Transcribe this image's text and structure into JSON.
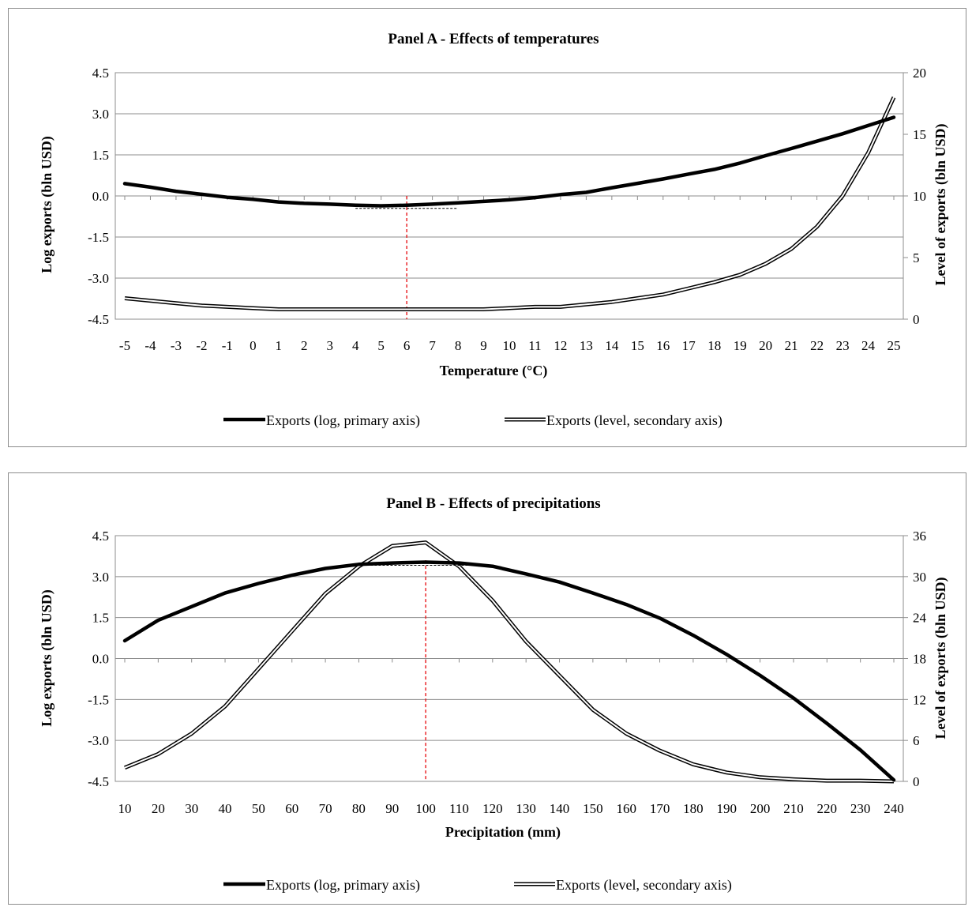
{
  "chart_data": [
    {
      "type": "line",
      "title": "Panel A - Effects of temperatures",
      "xlabel": "Temperature (°C)",
      "ylabel": "Log exports (bln USD)",
      "y2label": "Level of exports (bln USD)",
      "x": [
        -5,
        -4,
        -3,
        -2,
        -1,
        0,
        1,
        2,
        3,
        4,
        5,
        6,
        7,
        8,
        9,
        10,
        11,
        12,
        13,
        14,
        15,
        16,
        17,
        18,
        19,
        20,
        21,
        22,
        23,
        24,
        25
      ],
      "x_ticks": [
        "-5",
        "-4",
        "-3",
        "-2",
        "-1",
        "0",
        "1",
        "2",
        "3",
        "4",
        "5",
        "6",
        "7",
        "8",
        "9",
        "10",
        "11",
        "12",
        "13",
        "14",
        "15",
        "16",
        "17",
        "18",
        "19",
        "20",
        "21",
        "22",
        "23",
        "24",
        "25"
      ],
      "ylim": [
        -4.5,
        4.5
      ],
      "y_ticks": [
        "4.5",
        "3.0",
        "1.5",
        "0.0",
        "-1.5",
        "-3.0",
        "-4.5"
      ],
      "y2lim": [
        0,
        20
      ],
      "y2_ticks": [
        "20",
        "15",
        "10",
        "5",
        "0"
      ],
      "grid": true,
      "legend_position": "bottom",
      "marker_x": 6,
      "series": [
        {
          "name": "Exports (log, primary axis)",
          "axis": "primary",
          "values": [
            0.45,
            0.32,
            0.17,
            0.06,
            -0.05,
            -0.12,
            -0.22,
            -0.27,
            -0.3,
            -0.34,
            -0.36,
            -0.34,
            -0.3,
            -0.25,
            -0.2,
            -0.14,
            -0.06,
            0.05,
            0.13,
            0.3,
            0.46,
            0.62,
            0.8,
            0.97,
            1.2,
            1.47,
            1.73,
            2.0,
            2.27,
            2.57,
            2.87
          ]
        },
        {
          "name": "Exports (level, secondary axis)",
          "axis": "secondary",
          "values": [
            1.7,
            1.5,
            1.3,
            1.1,
            1.0,
            0.9,
            0.8,
            0.8,
            0.8,
            0.8,
            0.8,
            0.8,
            0.8,
            0.8,
            0.8,
            0.9,
            1.0,
            1.0,
            1.2,
            1.4,
            1.7,
            2.0,
            2.5,
            3.0,
            3.6,
            4.5,
            5.7,
            7.5,
            10.0,
            13.5,
            18.0
          ]
        }
      ]
    },
    {
      "type": "line",
      "title": "Panel B - Effects of precipitations",
      "xlabel": "Precipitation (mm)",
      "ylabel": "Log exports (bln USD)",
      "y2label": "Level of exports (bln USD)",
      "x": [
        10,
        20,
        30,
        40,
        50,
        60,
        70,
        80,
        90,
        100,
        110,
        120,
        130,
        140,
        150,
        160,
        170,
        180,
        190,
        200,
        210,
        220,
        230,
        240
      ],
      "x_ticks": [
        "10",
        "20",
        "30",
        "40",
        "50",
        "60",
        "70",
        "80",
        "90",
        "100",
        "110",
        "120",
        "130",
        "140",
        "150",
        "160",
        "170",
        "180",
        "190",
        "200",
        "210",
        "220",
        "230",
        "240"
      ],
      "ylim": [
        -4.5,
        4.5
      ],
      "y_ticks": [
        "4.5",
        "3.0",
        "1.5",
        "0.0",
        "-1.5",
        "-3.0",
        "-4.5"
      ],
      "y2lim": [
        0,
        36
      ],
      "y2_ticks": [
        "36",
        "30",
        "24",
        "18",
        "12",
        "6",
        "0"
      ],
      "grid": true,
      "legend_position": "bottom",
      "marker_x": 100,
      "series": [
        {
          "name": "Exports (log, primary axis)",
          "axis": "primary",
          "values": [
            0.65,
            1.4,
            1.9,
            2.4,
            2.75,
            3.05,
            3.3,
            3.45,
            3.5,
            3.53,
            3.5,
            3.38,
            3.1,
            2.8,
            2.4,
            1.98,
            1.48,
            0.85,
            0.15,
            -0.62,
            -1.45,
            -2.38,
            -3.35,
            -4.45
          ]
        },
        {
          "name": "Exports (level, secondary axis)",
          "axis": "secondary",
          "values": [
            2.0,
            4.0,
            7.0,
            11.0,
            16.5,
            22.0,
            27.5,
            31.5,
            34.5,
            35.0,
            31.5,
            26.5,
            20.5,
            15.5,
            10.5,
            7.0,
            4.5,
            2.5,
            1.3,
            0.6,
            0.3,
            0.1,
            0.1,
            0.0
          ]
        }
      ]
    }
  ]
}
